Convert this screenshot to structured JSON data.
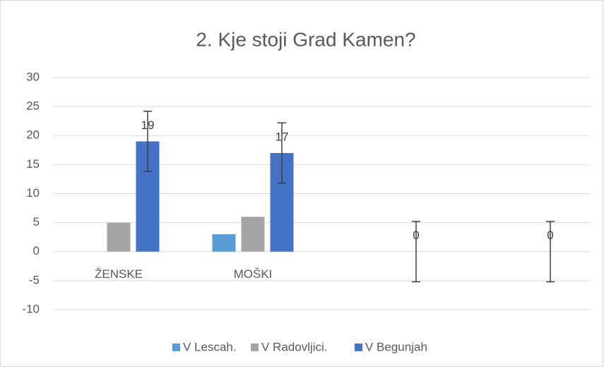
{
  "chart_data": {
    "type": "bar",
    "title": "2. Kje stoji Grad Kamen?",
    "categories": [
      "ŽENSKE",
      "MOŠKI",
      null,
      null
    ],
    "series": [
      {
        "name": "V Lescah.",
        "color": "#5b9bd5",
        "values": [
          0,
          3,
          null,
          null
        ]
      },
      {
        "name": "V Radovljici.",
        "color": "#a5a5a5",
        "values": [
          5,
          6,
          null,
          null
        ]
      },
      {
        "name": "V Begunjah",
        "color": "#4472c4",
        "values": [
          19,
          17,
          0,
          0
        ],
        "errors": [
          5.2,
          5.2,
          5.2,
          5.2
        ],
        "data_labels": true
      }
    ],
    "ylim": [
      -10,
      30
    ],
    "yticks": [
      -10,
      -5,
      0,
      5,
      10,
      15,
      20,
      25,
      30
    ],
    "grid": true,
    "legend": "bottom"
  }
}
